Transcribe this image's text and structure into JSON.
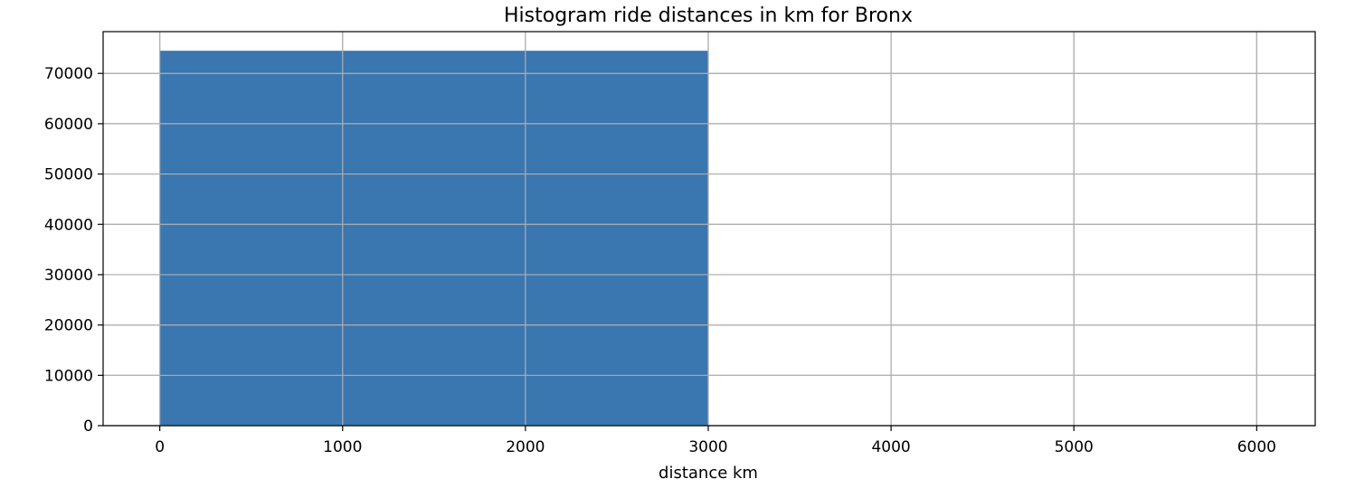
{
  "chart_data": {
    "type": "bar",
    "title": "Histogram ride distances in km for Bronx",
    "xlabel": "distance km",
    "ylabel": "",
    "bins": [
      {
        "start": 0,
        "end": 3000,
        "count": 74500
      }
    ],
    "xlim": [
      -310,
      6320
    ],
    "ylim": [
      0,
      78300
    ],
    "xticks": [
      0,
      1000,
      2000,
      3000,
      4000,
      5000,
      6000
    ],
    "yticks": [
      0,
      10000,
      20000,
      30000,
      40000,
      50000,
      60000,
      70000
    ],
    "grid": true,
    "bar_color": "#3a76b0",
    "grid_color": "#b0b0b0"
  }
}
